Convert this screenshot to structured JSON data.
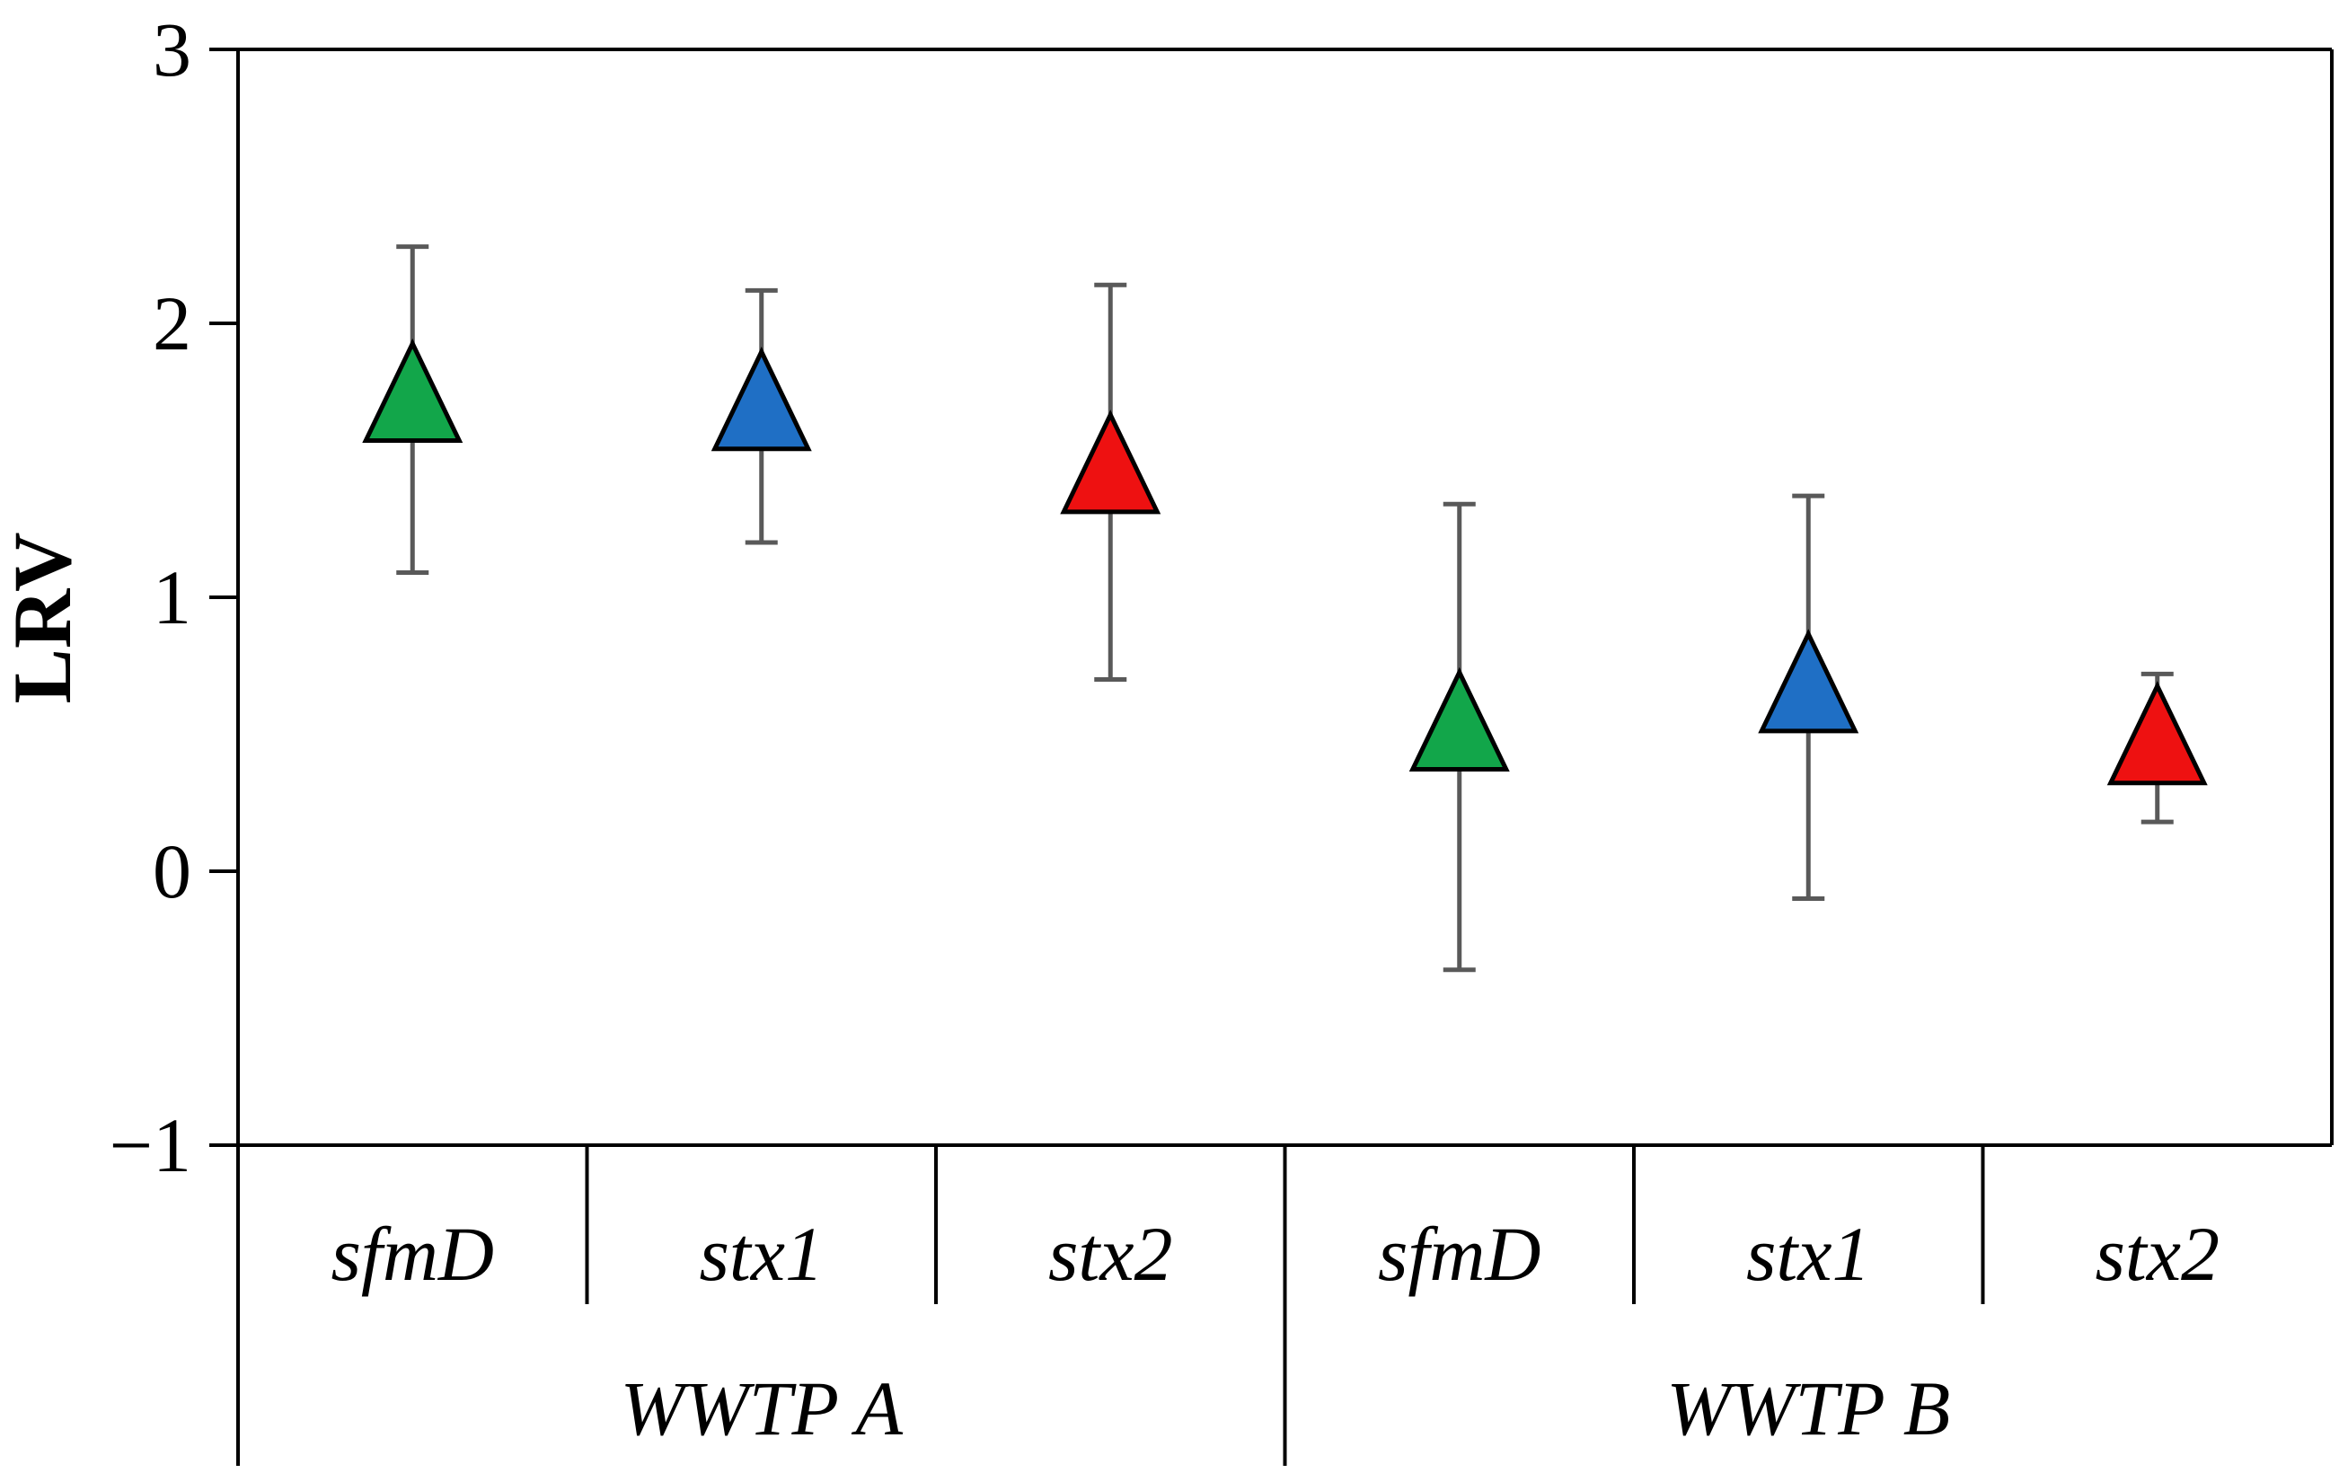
{
  "chart_data": {
    "type": "scatter",
    "title": "",
    "xlabel": "",
    "ylabel": "LRV",
    "ylim": [
      -1,
      3
    ],
    "yticks": [
      -1,
      0,
      1,
      2,
      3
    ],
    "ytick_labels": [
      "−1",
      "0",
      "1",
      "2",
      "3"
    ],
    "grid": false,
    "legend": "none",
    "marker": "triangle",
    "groups": [
      {
        "label": "WWTP A",
        "categories": [
          "sfmD",
          "stx1",
          "stx2"
        ]
      },
      {
        "label": "WWTP B",
        "categories": [
          "sfmD",
          "stx1",
          "stx2"
        ]
      }
    ],
    "points": [
      {
        "group": "WWTP A",
        "category": "sfmD",
        "value": 1.69,
        "err_low": 1.09,
        "err_high": 2.28,
        "color": "#12a64a"
      },
      {
        "group": "WWTP A",
        "category": "stx1",
        "value": 1.66,
        "err_low": 1.2,
        "err_high": 2.12,
        "color": "#1f6fc5"
      },
      {
        "group": "WWTP A",
        "category": "stx2",
        "value": 1.43,
        "err_low": 0.7,
        "err_high": 2.14,
        "color": "#ee1111"
      },
      {
        "group": "WWTP B",
        "category": "sfmD",
        "value": 0.49,
        "err_low": -0.36,
        "err_high": 1.34,
        "color": "#12a64a"
      },
      {
        "group": "WWTP B",
        "category": "stx1",
        "value": 0.63,
        "err_low": -0.1,
        "err_high": 1.37,
        "color": "#1f6fc5"
      },
      {
        "group": "WWTP B",
        "category": "stx2",
        "value": 0.44,
        "err_low": 0.18,
        "err_high": 0.72,
        "color": "#ee1111"
      }
    ]
  }
}
